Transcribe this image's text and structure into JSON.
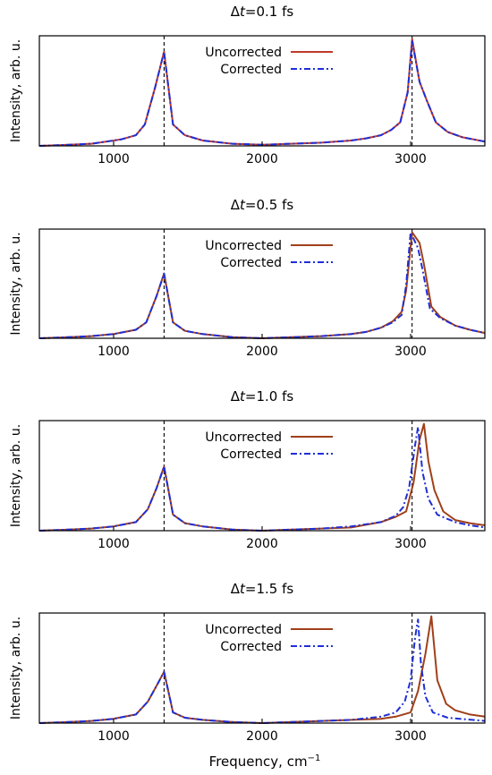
{
  "figure": {
    "xlabel": "Frequency, cm",
    "xlabel_sup": "−1"
  },
  "chart_data": [
    {
      "type": "line",
      "title_prefix": "Δ",
      "title_var": "t",
      "title_suffix": "=0.1 fs",
      "ylabel": "Intensity, arb. u.",
      "xlim": [
        500,
        3500
      ],
      "ylim": [
        0,
        1.03
      ],
      "xticks": [
        1000,
        2000,
        3000
      ],
      "tick_labels": [
        "1000",
        "2000",
        "3000"
      ],
      "vlines": [
        1340,
        3010
      ],
      "legend": [
        "Uncorrected",
        "Corrected"
      ],
      "legend_position": "top-center",
      "series": [
        {
          "name": "Uncorrected",
          "color": "#c0392b",
          "style": "solid",
          "points": [
            [
              500,
              0.0
            ],
            [
              700,
              0.01
            ],
            [
              850,
              0.02
            ],
            [
              950,
              0.04
            ],
            [
              1050,
              0.06
            ],
            [
              1150,
              0.1
            ],
            [
              1210,
              0.2
            ],
            [
              1280,
              0.55
            ],
            [
              1340,
              0.88
            ],
            [
              1400,
              0.2
            ],
            [
              1480,
              0.1
            ],
            [
              1600,
              0.05
            ],
            [
              1800,
              0.02
            ],
            [
              2000,
              0.01
            ],
            [
              2200,
              0.02
            ],
            [
              2400,
              0.03
            ],
            [
              2600,
              0.05
            ],
            [
              2700,
              0.07
            ],
            [
              2800,
              0.1
            ],
            [
              2870,
              0.15
            ],
            [
              2930,
              0.22
            ],
            [
              2980,
              0.5
            ],
            [
              3010,
              1.0
            ],
            [
              3060,
              0.6
            ],
            [
              3110,
              0.42
            ],
            [
              3170,
              0.22
            ],
            [
              3250,
              0.13
            ],
            [
              3350,
              0.08
            ],
            [
              3500,
              0.04
            ]
          ]
        },
        {
          "name": "Corrected",
          "color": "#1f2fd6",
          "style": "dashdot",
          "points": [
            [
              500,
              0.0
            ],
            [
              700,
              0.01
            ],
            [
              850,
              0.02
            ],
            [
              950,
              0.04
            ],
            [
              1050,
              0.06
            ],
            [
              1150,
              0.1
            ],
            [
              1210,
              0.2
            ],
            [
              1280,
              0.55
            ],
            [
              1340,
              0.88
            ],
            [
              1400,
              0.2
            ],
            [
              1480,
              0.1
            ],
            [
              1600,
              0.05
            ],
            [
              1800,
              0.02
            ],
            [
              2000,
              0.01
            ],
            [
              2200,
              0.02
            ],
            [
              2400,
              0.03
            ],
            [
              2600,
              0.05
            ],
            [
              2700,
              0.07
            ],
            [
              2800,
              0.1
            ],
            [
              2870,
              0.15
            ],
            [
              2930,
              0.22
            ],
            [
              2980,
              0.5
            ],
            [
              3010,
              0.98
            ],
            [
              3060,
              0.6
            ],
            [
              3110,
              0.42
            ],
            [
              3170,
              0.22
            ],
            [
              3250,
              0.13
            ],
            [
              3350,
              0.08
            ],
            [
              3500,
              0.04
            ]
          ]
        }
      ]
    },
    {
      "type": "line",
      "title_prefix": "Δ",
      "title_var": "t",
      "title_suffix": "=0.5 fs",
      "ylabel": "Intensity, arb. u.",
      "xlim": [
        500,
        3500
      ],
      "ylim": [
        0,
        1.03
      ],
      "xticks": [
        1000,
        2000,
        3000
      ],
      "tick_labels": [
        "1000",
        "2000",
        "3000"
      ],
      "vlines": [
        1340,
        3010
      ],
      "legend": [
        "Uncorrected",
        "Corrected"
      ],
      "legend_position": "top-center",
      "series": [
        {
          "name": "Uncorrected",
          "color": "#a0401a",
          "style": "solid",
          "points": [
            [
              500,
              0.0
            ],
            [
              700,
              0.01
            ],
            [
              850,
              0.02
            ],
            [
              1000,
              0.04
            ],
            [
              1150,
              0.08
            ],
            [
              1220,
              0.15
            ],
            [
              1290,
              0.4
            ],
            [
              1340,
              0.61
            ],
            [
              1400,
              0.15
            ],
            [
              1480,
              0.07
            ],
            [
              1600,
              0.04
            ],
            [
              1800,
              0.01
            ],
            [
              2000,
              0.0
            ],
            [
              2200,
              0.01
            ],
            [
              2400,
              0.02
            ],
            [
              2600,
              0.04
            ],
            [
              2700,
              0.06
            ],
            [
              2800,
              0.1
            ],
            [
              2880,
              0.16
            ],
            [
              2940,
              0.25
            ],
            [
              2970,
              0.45
            ],
            [
              3010,
              1.0
            ],
            [
              3060,
              0.9
            ],
            [
              3090,
              0.7
            ],
            [
              3140,
              0.3
            ],
            [
              3200,
              0.2
            ],
            [
              3300,
              0.12
            ],
            [
              3400,
              0.08
            ],
            [
              3500,
              0.05
            ]
          ]
        },
        {
          "name": "Corrected",
          "color": "#1f2fd6",
          "style": "dashdot",
          "points": [
            [
              500,
              0.0
            ],
            [
              700,
              0.01
            ],
            [
              850,
              0.02
            ],
            [
              1000,
              0.04
            ],
            [
              1150,
              0.08
            ],
            [
              1220,
              0.15
            ],
            [
              1290,
              0.4
            ],
            [
              1340,
              0.61
            ],
            [
              1400,
              0.15
            ],
            [
              1480,
              0.07
            ],
            [
              1600,
              0.04
            ],
            [
              1800,
              0.01
            ],
            [
              2000,
              0.0
            ],
            [
              2200,
              0.01
            ],
            [
              2400,
              0.02
            ],
            [
              2600,
              0.04
            ],
            [
              2700,
              0.06
            ],
            [
              2800,
              0.1
            ],
            [
              2880,
              0.15
            ],
            [
              2940,
              0.22
            ],
            [
              2970,
              0.5
            ],
            [
              3000,
              1.0
            ],
            [
              3050,
              0.85
            ],
            [
              3080,
              0.65
            ],
            [
              3130,
              0.28
            ],
            [
              3200,
              0.19
            ],
            [
              3300,
              0.12
            ],
            [
              3400,
              0.08
            ],
            [
              3500,
              0.05
            ]
          ]
        }
      ]
    },
    {
      "type": "line",
      "title_prefix": "Δ",
      "title_var": "t",
      "title_suffix": "=1.0 fs",
      "ylabel": "Intensity, arb. u.",
      "xlim": [
        500,
        3500
      ],
      "ylim": [
        0,
        1.03
      ],
      "xticks": [
        1000,
        2000,
        3000
      ],
      "tick_labels": [
        "1000",
        "2000",
        "3000"
      ],
      "vlines": [
        1340,
        3010
      ],
      "legend": [
        "Uncorrected",
        "Corrected"
      ],
      "legend_position": "top-center",
      "series": [
        {
          "name": "Uncorrected",
          "color": "#a0401a",
          "style": "solid",
          "points": [
            [
              500,
              0.0
            ],
            [
              700,
              0.01
            ],
            [
              850,
              0.02
            ],
            [
              1000,
              0.04
            ],
            [
              1150,
              0.08
            ],
            [
              1230,
              0.2
            ],
            [
              1290,
              0.4
            ],
            [
              1340,
              0.6
            ],
            [
              1400,
              0.15
            ],
            [
              1480,
              0.07
            ],
            [
              1600,
              0.04
            ],
            [
              1800,
              0.01
            ],
            [
              2000,
              0.0
            ],
            [
              2200,
              0.01
            ],
            [
              2400,
              0.02
            ],
            [
              2600,
              0.03
            ],
            [
              2800,
              0.08
            ],
            [
              2900,
              0.13
            ],
            [
              2970,
              0.18
            ],
            [
              3020,
              0.45
            ],
            [
              3060,
              0.85
            ],
            [
              3090,
              1.0
            ],
            [
              3120,
              0.65
            ],
            [
              3160,
              0.38
            ],
            [
              3220,
              0.18
            ],
            [
              3300,
              0.1
            ],
            [
              3400,
              0.07
            ],
            [
              3500,
              0.05
            ]
          ]
        },
        {
          "name": "Corrected",
          "color": "#1f2fd6",
          "style": "dashdot",
          "points": [
            [
              500,
              0.0
            ],
            [
              700,
              0.01
            ],
            [
              850,
              0.02
            ],
            [
              1000,
              0.04
            ],
            [
              1150,
              0.08
            ],
            [
              1230,
              0.2
            ],
            [
              1290,
              0.4
            ],
            [
              1340,
              0.6
            ],
            [
              1400,
              0.15
            ],
            [
              1480,
              0.07
            ],
            [
              1600,
              0.04
            ],
            [
              1800,
              0.01
            ],
            [
              2000,
              0.0
            ],
            [
              2200,
              0.01
            ],
            [
              2400,
              0.02
            ],
            [
              2600,
              0.04
            ],
            [
              2800,
              0.08
            ],
            [
              2900,
              0.14
            ],
            [
              2950,
              0.22
            ],
            [
              2990,
              0.4
            ],
            [
              3030,
              0.8
            ],
            [
              3050,
              0.97
            ],
            [
              3080,
              0.55
            ],
            [
              3120,
              0.3
            ],
            [
              3180,
              0.15
            ],
            [
              3300,
              0.08
            ],
            [
              3400,
              0.05
            ],
            [
              3500,
              0.03
            ]
          ]
        }
      ]
    },
    {
      "type": "line",
      "title_prefix": "Δ",
      "title_var": "t",
      "title_suffix": "=1.5 fs",
      "ylabel": "Intensity, arb. u.",
      "xlim": [
        500,
        3500
      ],
      "ylim": [
        0,
        1.03
      ],
      "xticks": [
        1000,
        2000,
        3000
      ],
      "tick_labels": [
        "1000",
        "2000",
        "3000"
      ],
      "vlines": [
        1340,
        3010
      ],
      "legend": [
        "Uncorrected",
        "Corrected"
      ],
      "legend_position": "top-center",
      "series": [
        {
          "name": "Uncorrected",
          "color": "#a0401a",
          "style": "solid",
          "points": [
            [
              500,
              0.0
            ],
            [
              700,
              0.01
            ],
            [
              850,
              0.02
            ],
            [
              1000,
              0.04
            ],
            [
              1150,
              0.08
            ],
            [
              1230,
              0.2
            ],
            [
              1290,
              0.35
            ],
            [
              1340,
              0.48
            ],
            [
              1400,
              0.1
            ],
            [
              1480,
              0.05
            ],
            [
              1600,
              0.03
            ],
            [
              1800,
              0.01
            ],
            [
              2000,
              0.0
            ],
            [
              2200,
              0.01
            ],
            [
              2400,
              0.02
            ],
            [
              2600,
              0.03
            ],
            [
              2800,
              0.04
            ],
            [
              2900,
              0.06
            ],
            [
              3000,
              0.1
            ],
            [
              3050,
              0.3
            ],
            [
              3100,
              0.65
            ],
            [
              3140,
              1.0
            ],
            [
              3180,
              0.4
            ],
            [
              3240,
              0.18
            ],
            [
              3300,
              0.12
            ],
            [
              3400,
              0.08
            ],
            [
              3500,
              0.06
            ]
          ]
        },
        {
          "name": "Corrected",
          "color": "#1f2fd6",
          "style": "dashdot",
          "points": [
            [
              500,
              0.0
            ],
            [
              700,
              0.01
            ],
            [
              850,
              0.02
            ],
            [
              1000,
              0.04
            ],
            [
              1150,
              0.08
            ],
            [
              1230,
              0.2
            ],
            [
              1290,
              0.35
            ],
            [
              1340,
              0.48
            ],
            [
              1400,
              0.1
            ],
            [
              1480,
              0.05
            ],
            [
              1600,
              0.03
            ],
            [
              1800,
              0.01
            ],
            [
              2000,
              0.0
            ],
            [
              2200,
              0.01
            ],
            [
              2400,
              0.02
            ],
            [
              2600,
              0.03
            ],
            [
              2800,
              0.06
            ],
            [
              2900,
              0.1
            ],
            [
              2960,
              0.2
            ],
            [
              3000,
              0.4
            ],
            [
              3030,
              0.8
            ],
            [
              3050,
              0.97
            ],
            [
              3070,
              0.55
            ],
            [
              3100,
              0.25
            ],
            [
              3150,
              0.1
            ],
            [
              3250,
              0.05
            ],
            [
              3500,
              0.02
            ]
          ]
        }
      ]
    }
  ]
}
